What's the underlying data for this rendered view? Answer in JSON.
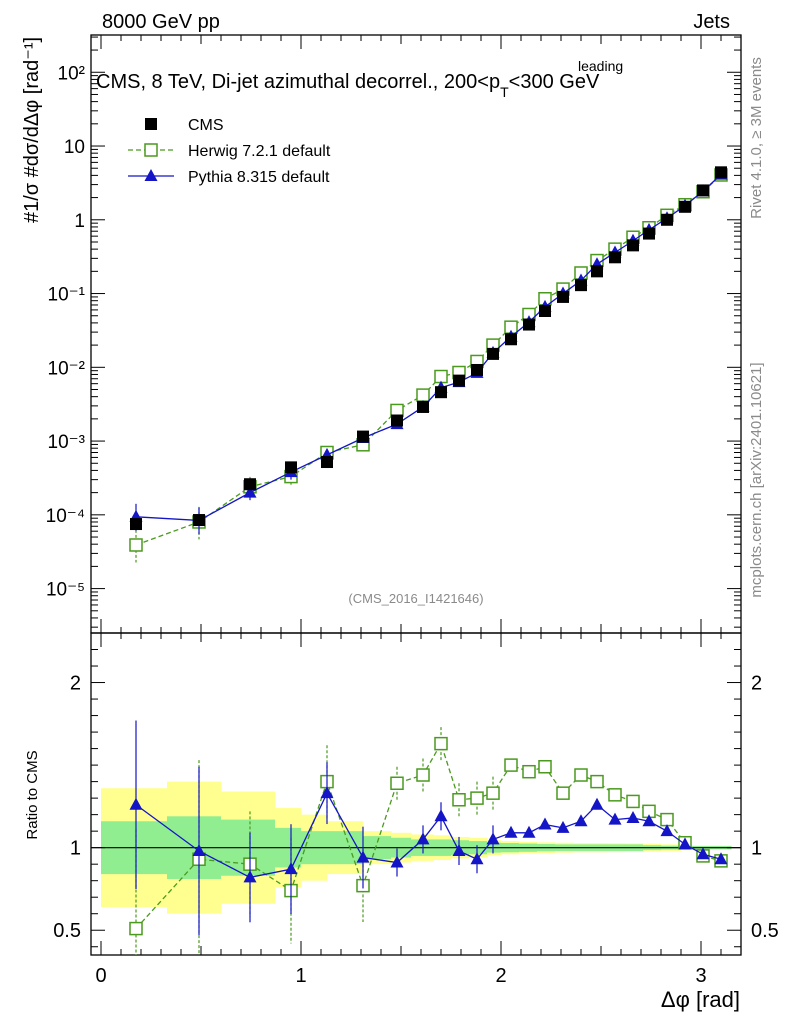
{
  "header": {
    "left": "8000 GeV pp",
    "right": "Jets"
  },
  "side_labels": {
    "rivet": "Rivet 4.1.0, ≥ 3M events",
    "mcplots": "mcplots.cern.ch [arXiv:2401.10621]"
  },
  "chart_data": {
    "type": "scatter",
    "title_main": "CMS, 8 TeV, Di-jet azimuthal decorrel., 200<p",
    "title_sup": "leading",
    "title_sub": "T",
    "title_end": "<300 GeV",
    "analysis_id": "(CMS_2016_I1421646)",
    "xlabel": "Δφ [rad]",
    "ylabel": "#1/σ #dσ/dΔφ [rad⁻¹]",
    "ratio_ylabel": "Ratio to CMS",
    "xlim": [
      -0.05,
      3.2
    ],
    "ylim": [
      2.5e-06,
      320
    ],
    "ratio_ylim": [
      0.35,
      2.3
    ],
    "x_ticks": [
      "0",
      "1",
      "2",
      "3"
    ],
    "y_ticks": [
      "10⁻⁵",
      "10⁻⁴",
      "10⁻³",
      "10⁻²",
      "10⁻¹",
      "1",
      "10",
      "10²"
    ],
    "ratio_ticks": [
      "0.5",
      "1",
      "2"
    ],
    "legend": [
      "CMS",
      "Herwig 7.2.1 default",
      "Pythia 8.315 default"
    ],
    "x": [
      0.175,
      0.49,
      0.745,
      0.95,
      1.13,
      1.31,
      1.48,
      1.61,
      1.7,
      1.79,
      1.88,
      1.96,
      2.05,
      2.14,
      2.22,
      2.31,
      2.4,
      2.48,
      2.57,
      2.66,
      2.74,
      2.83,
      2.92,
      3.01,
      3.1
    ],
    "series": [
      {
        "name": "CMS",
        "values": [
          7.5e-05,
          8.5e-05,
          0.00026,
          0.00044,
          0.00052,
          0.00115,
          0.0019,
          0.0029,
          0.0046,
          0.0066,
          0.0092,
          0.0152,
          0.024,
          0.038,
          0.058,
          0.09,
          0.13,
          0.2,
          0.31,
          0.45,
          0.65,
          1.0,
          1.5,
          2.5,
          4.4
        ]
      },
      {
        "name": "Herwig 7.2.1 default",
        "values": [
          3.9e-05,
          8e-05,
          0.00024,
          0.00033,
          0.0007,
          0.00089,
          0.0026,
          0.0042,
          0.0075,
          0.0085,
          0.012,
          0.02,
          0.035,
          0.052,
          0.085,
          0.115,
          0.19,
          0.28,
          0.4,
          0.58,
          0.78,
          1.15,
          1.6,
          2.4,
          4.05
        ]
      },
      {
        "name": "Pythia 8.315 default",
        "values": [
          9.4e-05,
          8.4e-05,
          0.0002,
          0.00038,
          0.00065,
          0.0011,
          0.0017,
          0.0029,
          0.0053,
          0.0063,
          0.0084,
          0.0157,
          0.026,
          0.041,
          0.066,
          0.1,
          0.15,
          0.25,
          0.36,
          0.52,
          0.73,
          1.05,
          1.55,
          2.45,
          4.1
        ]
      }
    ],
    "ratio_series": [
      {
        "name": "Herwig 7.2.1 default",
        "values": [
          0.51,
          0.93,
          0.9,
          0.74,
          1.4,
          0.77,
          1.39,
          1.44,
          1.63,
          1.29,
          1.3,
          1.33,
          1.5,
          1.46,
          1.49,
          1.33,
          1.44,
          1.4,
          1.32,
          1.28,
          1.22,
          1.17,
          1.03,
          0.95,
          0.92
        ]
      },
      {
        "name": "Pythia 8.315 default",
        "values": [
          1.26,
          0.98,
          0.82,
          0.87,
          1.33,
          0.94,
          0.91,
          1.05,
          1.19,
          0.98,
          0.93,
          1.05,
          1.09,
          1.09,
          1.14,
          1.12,
          1.16,
          1.26,
          1.17,
          1.18,
          1.16,
          1.1,
          1.02,
          0.96,
          0.93
        ]
      }
    ],
    "ratio_band_edges": [
      0.0,
      0.33,
      0.6,
      0.87,
      1.0,
      1.13,
      1.31,
      1.45,
      1.55,
      1.66,
      1.75,
      1.84,
      1.93,
      2.0,
      2.09,
      2.18,
      2.27,
      2.36,
      2.45,
      2.53,
      2.62,
      2.71,
      2.8,
      2.9,
      2.97,
      3.15
    ],
    "ratio_band_inner": [
      0.16,
      0.19,
      0.17,
      0.12,
      0.1,
      0.1,
      0.07,
      0.06,
      0.05,
      0.05,
      0.045,
      0.04,
      0.03,
      0.028,
      0.025,
      0.022,
      0.02,
      0.02,
      0.02,
      0.02,
      0.02,
      0.015,
      0.012,
      0.01,
      0.01
    ],
    "ratio_band_outer": [
      0.36,
      0.4,
      0.34,
      0.24,
      0.2,
      0.16,
      0.1,
      0.09,
      0.08,
      0.075,
      0.065,
      0.06,
      0.045,
      0.04,
      0.035,
      0.032,
      0.03,
      0.028,
      0.028,
      0.027,
      0.026,
      0.024,
      0.02,
      0.015,
      0.013
    ],
    "colors": {
      "data": "#000000",
      "herwig": "#4a9a1e",
      "pythia": "#1515c8",
      "band_inner": "#90ee90",
      "band_outer": "#ffff90",
      "grey_text": "#8a8a8a"
    }
  }
}
